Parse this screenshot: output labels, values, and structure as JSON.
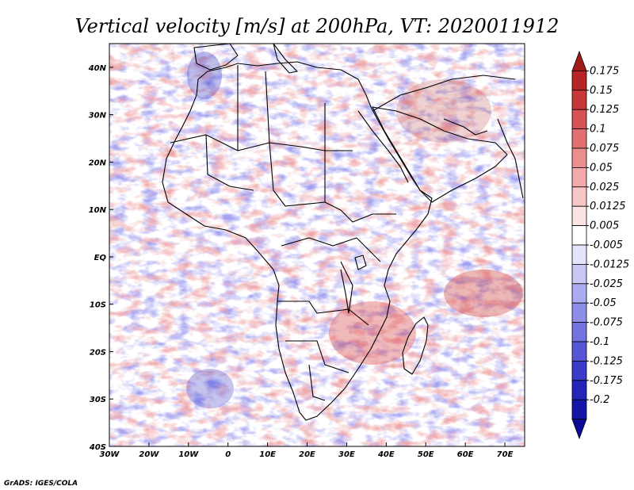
{
  "chart_data": {
    "type": "heatmap",
    "title": "Vertical velocity [m/s] at 200hPa, VT: 2020011912",
    "variable": "Vertical velocity",
    "units": "m/s",
    "level": "200hPa",
    "valid_time": "2020011912",
    "x_axis": {
      "label": "",
      "range": [
        -30,
        75
      ],
      "ticks": [
        {
          "value": -30,
          "label": "30W"
        },
        {
          "value": -20,
          "label": "20W"
        },
        {
          "value": -10,
          "label": "10W"
        },
        {
          "value": 0,
          "label": "0"
        },
        {
          "value": 10,
          "label": "10E"
        },
        {
          "value": 20,
          "label": "20E"
        },
        {
          "value": 30,
          "label": "30E"
        },
        {
          "value": 40,
          "label": "40E"
        },
        {
          "value": 50,
          "label": "50E"
        },
        {
          "value": 60,
          "label": "60E"
        },
        {
          "value": 70,
          "label": "70E"
        }
      ]
    },
    "y_axis": {
      "label": "",
      "range": [
        -40,
        45
      ],
      "ticks": [
        {
          "value": 40,
          "label": "40N"
        },
        {
          "value": 30,
          "label": "30N"
        },
        {
          "value": 20,
          "label": "20N"
        },
        {
          "value": 10,
          "label": "10N"
        },
        {
          "value": 0,
          "label": "EQ"
        },
        {
          "value": -10,
          "label": "10S"
        },
        {
          "value": -20,
          "label": "20S"
        },
        {
          "value": -30,
          "label": "30S"
        },
        {
          "value": -40,
          "label": "40S"
        }
      ]
    },
    "colorbar": {
      "orientation": "vertical",
      "placement": "right",
      "bins": [
        {
          "color": "#a11a1a"
        },
        {
          "color": "#b82424"
        },
        {
          "color": "#c83838"
        },
        {
          "color": "#d75252"
        },
        {
          "color": "#e27070"
        },
        {
          "color": "#eb8e8e"
        },
        {
          "color": "#f2aaaa"
        },
        {
          "color": "#f8c6c6"
        },
        {
          "color": "#fce4e4"
        },
        {
          "color": "#ffffff"
        },
        {
          "color": "#e4e4fc"
        },
        {
          "color": "#c8c8f6"
        },
        {
          "color": "#ababf0"
        },
        {
          "color": "#8e8ee8"
        },
        {
          "color": "#7272e0"
        },
        {
          "color": "#5555d6"
        },
        {
          "color": "#3a3acb"
        },
        {
          "color": "#2424bb"
        },
        {
          "color": "#1414a8"
        },
        {
          "color": "#0a0a96"
        }
      ],
      "labels": [
        "0.175",
        "0.15",
        "0.125",
        "0.1",
        "0.075",
        "0.05",
        "0.025",
        "0.0125",
        "0.005",
        "-0.005",
        "-0.0125",
        "-0.025",
        "-0.05",
        "-0.075",
        "-0.1",
        "-0.125",
        "-0.175",
        "-0.2"
      ]
    },
    "field_summary": {
      "positive_color": "#d94a4a",
      "negative_color": "#4a4ad9",
      "neutral_color": "#ffffff",
      "noted_regions": [
        {
          "name": "Mozambique Channel / Madagascar",
          "sign": "positive"
        },
        {
          "name": "Southern Indian Ocean near 10S 60E-75E",
          "sign": "positive"
        },
        {
          "name": "Arabian Peninsula / Iran",
          "sign": "mixed"
        },
        {
          "name": "South Atlantic near 30S 25W",
          "sign": "negative"
        }
      ]
    }
  },
  "credit": "GrADS: IGES/COLA"
}
